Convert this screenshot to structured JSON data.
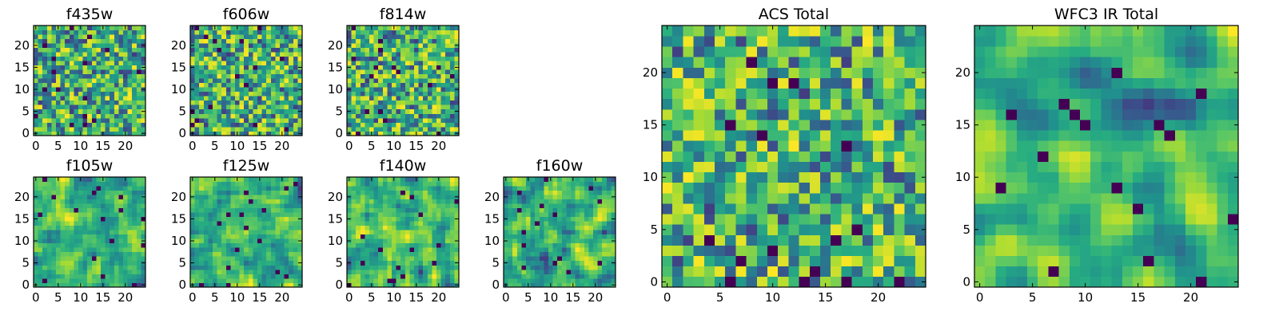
{
  "figure": {
    "title": ""
  },
  "chart_data": [
    {
      "type": "heatmap",
      "title": "f435w",
      "grid": false,
      "xticks": [
        "0",
        "5",
        "10",
        "15",
        "20"
      ],
      "yticks": [
        "0",
        "5",
        "10",
        "15",
        "20"
      ],
      "xlim": [
        -0.5,
        24.5
      ],
      "ylim": [
        -0.5,
        24.5
      ],
      "shape": [
        25,
        25
      ],
      "colormap": "viridis",
      "smoothness": 0,
      "seed": 11
    },
    {
      "type": "heatmap",
      "title": "f606w",
      "grid": false,
      "xticks": [
        "0",
        "5",
        "10",
        "15",
        "20"
      ],
      "yticks": [
        "0",
        "5",
        "10",
        "15",
        "20"
      ],
      "xlim": [
        -0.5,
        24.5
      ],
      "ylim": [
        -0.5,
        24.5
      ],
      "shape": [
        25,
        25
      ],
      "colormap": "viridis",
      "smoothness": 0,
      "seed": 23
    },
    {
      "type": "heatmap",
      "title": "f814w",
      "grid": false,
      "xticks": [
        "0",
        "5",
        "10",
        "15",
        "20"
      ],
      "yticks": [
        "0",
        "5",
        "10",
        "15",
        "20"
      ],
      "xlim": [
        -0.5,
        24.5
      ],
      "ylim": [
        -0.5,
        24.5
      ],
      "shape": [
        25,
        25
      ],
      "colormap": "viridis",
      "smoothness": 0,
      "seed": 37
    },
    {
      "type": "heatmap",
      "title": "f105w",
      "grid": false,
      "xticks": [
        "0",
        "5",
        "10",
        "15",
        "20"
      ],
      "yticks": [
        "0",
        "5",
        "10",
        "15",
        "20"
      ],
      "xlim": [
        -0.5,
        24.5
      ],
      "ylim": [
        -0.5,
        24.5
      ],
      "shape": [
        25,
        25
      ],
      "colormap": "viridis",
      "smoothness": 1,
      "seed": 41
    },
    {
      "type": "heatmap",
      "title": "f125w",
      "grid": false,
      "xticks": [
        "0",
        "5",
        "10",
        "15",
        "20"
      ],
      "yticks": [
        "0",
        "5",
        "10",
        "15",
        "20"
      ],
      "xlim": [
        -0.5,
        24.5
      ],
      "ylim": [
        -0.5,
        24.5
      ],
      "shape": [
        25,
        25
      ],
      "colormap": "viridis",
      "smoothness": 1,
      "seed": 53
    },
    {
      "type": "heatmap",
      "title": "f140w",
      "grid": false,
      "xticks": [
        "0",
        "5",
        "10",
        "15",
        "20"
      ],
      "yticks": [
        "0",
        "5",
        "10",
        "15",
        "20"
      ],
      "xlim": [
        -0.5,
        24.5
      ],
      "ylim": [
        -0.5,
        24.5
      ],
      "shape": [
        25,
        25
      ],
      "colormap": "viridis",
      "smoothness": 1,
      "seed": 67
    },
    {
      "type": "heatmap",
      "title": "f160w",
      "grid": false,
      "xticks": [
        "0",
        "5",
        "10",
        "15",
        "20"
      ],
      "yticks": [
        "0",
        "5",
        "10",
        "15",
        "20"
      ],
      "xlim": [
        -0.5,
        24.5
      ],
      "ylim": [
        -0.5,
        24.5
      ],
      "shape": [
        25,
        25
      ],
      "colormap": "viridis",
      "smoothness": 1,
      "seed": 79
    },
    {
      "type": "heatmap",
      "title": "ACS Total",
      "grid": false,
      "xticks": [
        "0",
        "5",
        "10",
        "15",
        "20"
      ],
      "yticks": [
        "0",
        "5",
        "10",
        "15",
        "20"
      ],
      "xlim": [
        -0.5,
        24.5
      ],
      "ylim": [
        -0.5,
        24.5
      ],
      "shape": [
        25,
        25
      ],
      "colormap": "viridis",
      "smoothness": 0,
      "seed": 83
    },
    {
      "type": "heatmap",
      "title": "WFC3 IR Total",
      "grid": false,
      "xticks": [
        "0",
        "5",
        "10",
        "15",
        "20"
      ],
      "yticks": [
        "0",
        "5",
        "10",
        "15",
        "20"
      ],
      "xlim": [
        -0.5,
        24.5
      ],
      "ylim": [
        -0.5,
        24.5
      ],
      "shape": [
        25,
        25
      ],
      "colormap": "viridis",
      "smoothness": 2,
      "seed": 97
    }
  ]
}
